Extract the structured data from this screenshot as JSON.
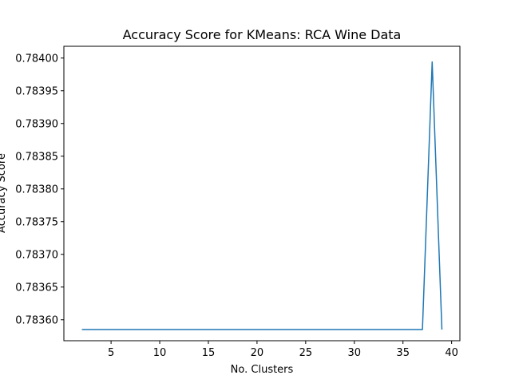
{
  "chart_data": {
    "type": "line",
    "title": "Accuracy Score for KMeans: RCA Wine Data",
    "xlabel": "No. Clusters",
    "ylabel": "Accuracy Score",
    "xlim": [
      0.15,
      40.85
    ],
    "ylim": [
      0.783568,
      0.784018
    ],
    "x_ticks": [
      5,
      10,
      15,
      20,
      25,
      30,
      35,
      40
    ],
    "x_tick_labels": [
      "5",
      "10",
      "15",
      "20",
      "25",
      "30",
      "35",
      "40"
    ],
    "y_ticks": [
      0.7836,
      0.78365,
      0.7837,
      0.78375,
      0.7838,
      0.78385,
      0.7839,
      0.78395,
      0.784
    ],
    "y_tick_labels": [
      "0.78360",
      "0.78365",
      "0.78370",
      "0.78375",
      "0.78380",
      "0.78385",
      "0.78390",
      "0.78395",
      "0.78400"
    ],
    "grid": false,
    "series": [
      {
        "color": "#1f77b4",
        "x": [
          2,
          3,
          4,
          5,
          6,
          7,
          8,
          9,
          10,
          11,
          12,
          13,
          14,
          15,
          16,
          17,
          18,
          19,
          20,
          21,
          22,
          23,
          24,
          25,
          26,
          27,
          28,
          29,
          30,
          31,
          32,
          33,
          34,
          35,
          36,
          37,
          38,
          39
        ],
        "values": [
          0.783585,
          0.783585,
          0.783585,
          0.783585,
          0.783585,
          0.783585,
          0.783585,
          0.783585,
          0.783585,
          0.783585,
          0.783585,
          0.783585,
          0.783585,
          0.783585,
          0.783585,
          0.783585,
          0.783585,
          0.783585,
          0.783585,
          0.783585,
          0.783585,
          0.783585,
          0.783585,
          0.783585,
          0.783585,
          0.783585,
          0.783585,
          0.783585,
          0.783585,
          0.783585,
          0.783585,
          0.783585,
          0.783585,
          0.783585,
          0.783585,
          0.783585,
          0.783994,
          0.783585
        ]
      }
    ]
  }
}
